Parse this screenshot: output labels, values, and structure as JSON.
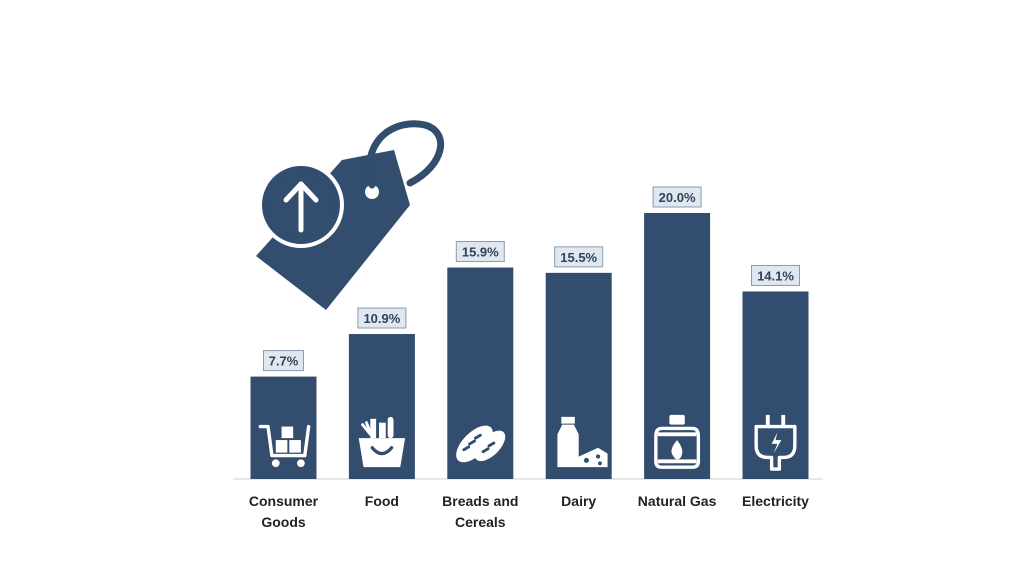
{
  "chart_data": {
    "type": "bar",
    "categories": [
      [
        "Consumer",
        "Goods"
      ],
      [
        "Food"
      ],
      [
        "Breads and",
        "Cereals"
      ],
      [
        "Dairy"
      ],
      [
        "Natural Gas"
      ],
      [
        "Electricity"
      ]
    ],
    "values": [
      7.7,
      10.9,
      15.9,
      15.5,
      20.0,
      14.1
    ],
    "value_labels": [
      "7.7%",
      "10.9%",
      "15.9%",
      "15.5%",
      "20.0%",
      "14.1%"
    ],
    "icons": [
      "shopping-cart-boxes-icon",
      "grocery-basket-icon",
      "bread-loaves-icon",
      "milk-cheese-icon",
      "gas-cylinder-icon",
      "electric-plug-icon"
    ],
    "decor_icon": "price-tag-up-arrow-icon",
    "ylim": [
      0,
      20
    ],
    "grid": false,
    "legend": "none",
    "title": "",
    "xlabel": "",
    "ylabel": ""
  },
  "colors": {
    "bar": "#334d6e",
    "label_box_fill": "#dfe7f1",
    "label_box_stroke": "#8b9bb0",
    "label_text": "#33425a",
    "axis": "#cfcfcf",
    "category_text": "#222222"
  }
}
